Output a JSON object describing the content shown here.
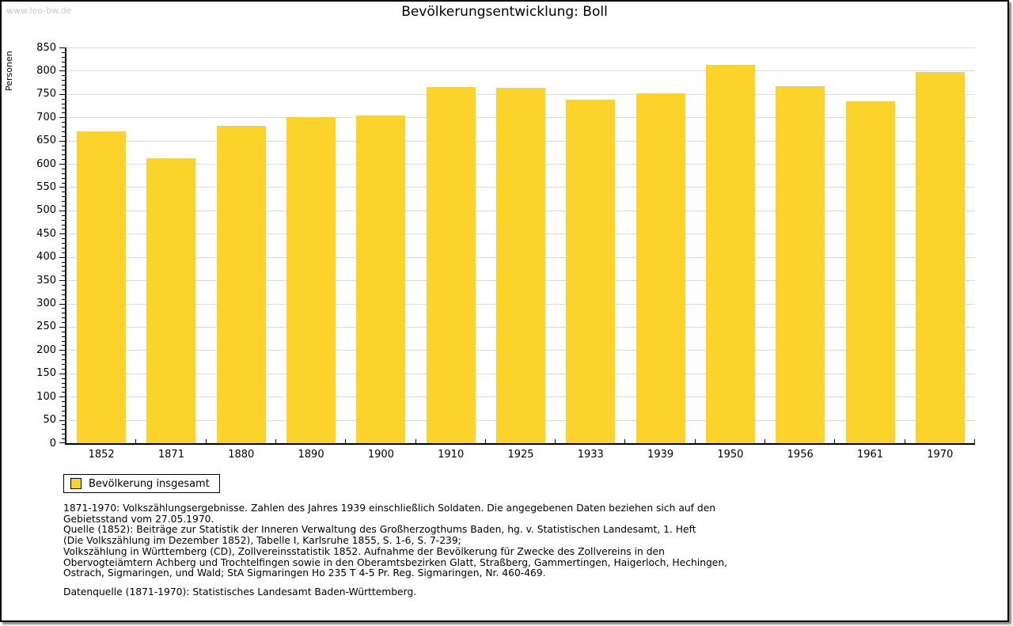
{
  "page": {
    "watermark": "www.leo-bw.de",
    "title": "Bevölkerungsentwicklung: Boll"
  },
  "chart_data": {
    "type": "bar",
    "title": "Bevölkerungsentwicklung: Boll",
    "xlabel": "",
    "ylabel": "Personen",
    "categories": [
      "1852",
      "1871",
      "1880",
      "1890",
      "1900",
      "1910",
      "1925",
      "1933",
      "1939",
      "1950",
      "1956",
      "1961",
      "1970"
    ],
    "values": [
      669,
      612,
      681,
      701,
      703,
      765,
      763,
      737,
      751,
      812,
      767,
      735,
      798
    ],
    "series_name": "Bevölkerung insgesamt",
    "ylim": [
      0,
      850
    ],
    "ytick_step": 50,
    "y_minor_tick_step": 10,
    "grid": "horizontal",
    "bar_color": "#fcd32b",
    "legend_position": "bottom-left"
  },
  "legend": {
    "label": "Bevölkerung insgesamt",
    "swatch_color": "#fcd32b"
  },
  "footnotes": {
    "lines": [
      "1871-1970: Volkszählungsergebnisse. Zahlen des Jahres 1939 einschließlich Soldaten. Die angegebenen Daten beziehen sich auf den",
      "Gebietsstand vom 27.05.1970.",
      "Quelle (1852): Beiträge zur Statistik der Inneren Verwaltung des Großherzogthums Baden, hg. v. Statistischen Landesamt, 1. Heft",
      "(Die Volkszählung im Dezember 1852), Tabelle I, Karlsruhe 1855, S. 1-6, S. 7-239;",
      "Volkszählung in Württemberg (CD), Zollvereinsstatistik 1852. Aufnahme der Bevölkerung für Zwecke des Zollvereins in den",
      "Obervogteiämtern Achberg und Trochtelfingen sowie in den Oberamtsbezirken Glatt, Straßberg, Gammertingen, Haigerloch, Hechingen,",
      "Ostrach, Sigmaringen, und Wald; StA Sigmaringen Ho 235 T 4-5 Pr. Reg. Sigmaringen, Nr. 460-469."
    ],
    "datasource": "Datenquelle (1871-1970): Statistisches Landesamt Baden-Württemberg."
  }
}
